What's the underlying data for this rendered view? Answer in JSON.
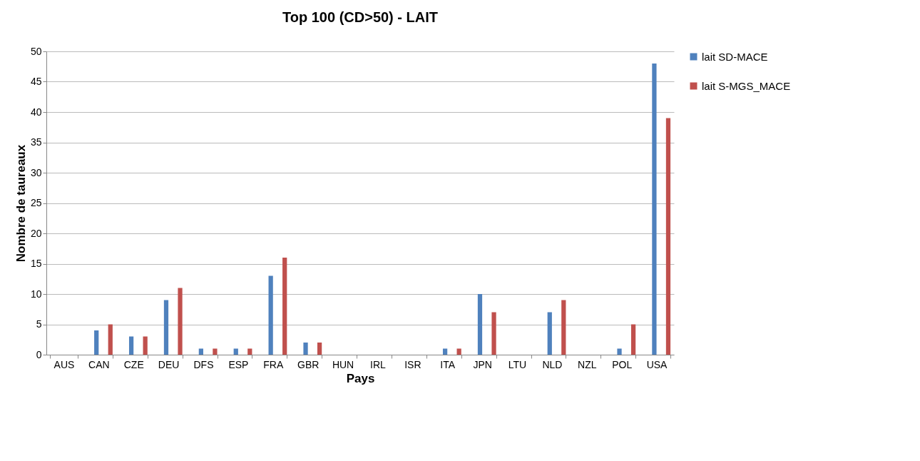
{
  "chart_data": {
    "type": "bar",
    "title": "Top 100 (CD>50) - LAIT",
    "xlabel": "Pays",
    "ylabel": "Nombre de taureaux",
    "categories": [
      "AUS",
      "CAN",
      "CZE",
      "DEU",
      "DFS",
      "ESP",
      "FRA",
      "GBR",
      "HUN",
      "IRL",
      "ISR",
      "ITA",
      "JPN",
      "LTU",
      "NLD",
      "NZL",
      "POL",
      "USA"
    ],
    "series": [
      {
        "name": "lait SD-MACE",
        "color": "#4f81bd",
        "values": [
          0,
          4,
          3,
          9,
          1,
          1,
          13,
          2,
          0,
          0,
          0,
          1,
          10,
          0,
          7,
          0,
          1,
          48
        ]
      },
      {
        "name": "lait S-MGS_MACE",
        "color": "#c0504d",
        "values": [
          0,
          5,
          3,
          11,
          1,
          1,
          16,
          2,
          0,
          0,
          0,
          1,
          7,
          0,
          9,
          0,
          5,
          39
        ]
      }
    ],
    "ylim": [
      0,
      50
    ],
    "yticks": [
      0,
      5,
      10,
      15,
      20,
      25,
      30,
      35,
      40,
      45,
      50
    ],
    "grid": "y",
    "legend": "right"
  }
}
